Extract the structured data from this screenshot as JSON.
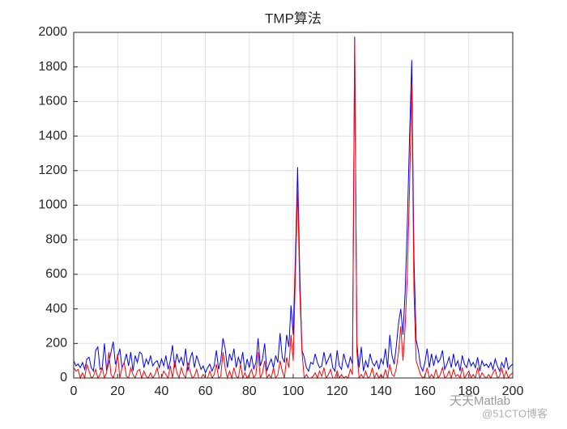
{
  "chart_data": {
    "type": "line",
    "title": "TMP算法",
    "x": [
      0,
      1,
      2,
      3,
      4,
      5,
      6,
      7,
      8,
      9,
      10,
      11,
      12,
      13,
      14,
      15,
      16,
      17,
      18,
      19,
      20,
      21,
      22,
      23,
      24,
      25,
      26,
      27,
      28,
      29,
      30,
      31,
      32,
      33,
      34,
      35,
      36,
      37,
      38,
      39,
      40,
      41,
      42,
      43,
      44,
      45,
      46,
      47,
      48,
      49,
      50,
      51,
      52,
      53,
      54,
      55,
      56,
      57,
      58,
      59,
      60,
      61,
      62,
      63,
      64,
      65,
      66,
      67,
      68,
      69,
      70,
      71,
      72,
      73,
      74,
      75,
      76,
      77,
      78,
      79,
      80,
      81,
      82,
      83,
      84,
      85,
      86,
      87,
      88,
      89,
      90,
      91,
      92,
      93,
      94,
      95,
      96,
      97,
      98,
      99,
      100,
      101,
      102,
      103,
      104,
      105,
      106,
      107,
      108,
      109,
      110,
      111,
      112,
      113,
      114,
      115,
      116,
      117,
      118,
      119,
      120,
      121,
      122,
      123,
      124,
      125,
      126,
      127,
      128,
      129,
      130,
      131,
      132,
      133,
      134,
      135,
      136,
      137,
      138,
      139,
      140,
      141,
      142,
      143,
      144,
      145,
      146,
      147,
      148,
      149,
      150,
      151,
      152,
      153,
      154,
      155,
      156,
      157,
      158,
      159,
      160,
      161,
      162,
      163,
      164,
      165,
      166,
      167,
      168,
      169,
      170,
      171,
      172,
      173,
      174,
      175,
      176,
      177,
      178,
      179,
      180,
      181,
      182,
      183,
      184,
      185,
      186,
      187,
      188,
      189,
      190,
      191,
      192,
      193,
      194,
      195,
      196,
      197,
      198,
      199,
      200
    ],
    "series": [
      {
        "color": "#0000ff",
        "values": [
          100,
          70,
          80,
          60,
          90,
          50,
          110,
          120,
          60,
          40,
          160,
          180,
          50,
          60,
          200,
          40,
          90,
          150,
          210,
          80,
          120,
          170,
          60,
          90,
          140,
          70,
          150,
          40,
          130,
          90,
          150,
          140,
          60,
          110,
          80,
          130,
          70,
          90,
          100,
          60,
          110,
          70,
          130,
          50,
          100,
          190,
          60,
          140,
          90,
          120,
          70,
          170,
          40,
          110,
          150,
          60,
          130,
          90,
          50,
          70,
          30,
          60,
          80,
          40,
          70,
          160,
          50,
          100,
          230,
          170,
          60,
          140,
          100,
          170,
          60,
          120,
          80,
          150,
          40,
          110,
          60,
          130,
          50,
          90,
          230,
          70,
          110,
          200,
          40,
          80,
          110,
          60,
          130,
          90,
          260,
          120,
          90,
          250,
          180,
          420,
          250,
          700,
          1220,
          600,
          160,
          120,
          60,
          40,
          90,
          80,
          140,
          90,
          60,
          70,
          150,
          80,
          110,
          140,
          60,
          40,
          160,
          70,
          50,
          140,
          90,
          60,
          120,
          80,
          1975,
          200,
          60,
          180,
          40,
          100,
          60,
          140,
          90,
          70,
          100,
          50,
          110,
          80,
          170,
          60,
          250,
          130,
          80,
          190,
          320,
          400,
          250,
          500,
          900,
          1400,
          1840,
          700,
          220,
          160,
          70,
          40,
          90,
          170,
          60,
          140,
          70,
          130,
          90,
          110,
          160,
          50,
          80,
          120,
          60,
          140,
          70,
          100,
          40,
          130,
          80,
          60,
          110,
          70,
          90,
          60,
          120,
          40,
          100,
          70,
          80,
          60,
          90,
          50,
          110,
          70,
          40,
          90,
          60,
          120,
          50,
          70,
          80
        ]
      },
      {
        "color": "#ff0000",
        "values": [
          60,
          40,
          50,
          0,
          30,
          0,
          80,
          40,
          0,
          10,
          50,
          0,
          20,
          60,
          0,
          30,
          150,
          20,
          0,
          40,
          140,
          0,
          60,
          90,
          10,
          0,
          60,
          20,
          0,
          40,
          50,
          0,
          40,
          10,
          0,
          30,
          0,
          20,
          60,
          0,
          0,
          40,
          20,
          0,
          70,
          0,
          100,
          30,
          0,
          60,
          20,
          0,
          90,
          40,
          0,
          10,
          50,
          0,
          0,
          20,
          0,
          0,
          40,
          0,
          20,
          80,
          0,
          10,
          150,
          60,
          0,
          40,
          0,
          60,
          10,
          0,
          80,
          0,
          30,
          0,
          20,
          50,
          0,
          20,
          150,
          0,
          30,
          100,
          0,
          20,
          0,
          60,
          0,
          20,
          100,
          40,
          0,
          120,
          60,
          250,
          100,
          600,
          1100,
          500,
          150,
          0,
          20,
          0,
          0,
          10,
          30,
          0,
          40,
          10,
          60,
          0,
          20,
          50,
          0,
          0,
          40,
          0,
          20,
          0,
          10,
          0,
          50,
          20,
          1950,
          150,
          0,
          20,
          0,
          40,
          0,
          10,
          60,
          0,
          30,
          0,
          20,
          0,
          50,
          0,
          80,
          20,
          10,
          60,
          150,
          300,
          100,
          300,
          600,
          1100,
          1700,
          500,
          100,
          60,
          20,
          0,
          10,
          60,
          0,
          20,
          0,
          50,
          0,
          20,
          60,
          0,
          10,
          40,
          0,
          50,
          10,
          20,
          0,
          60,
          0,
          20,
          40,
          0,
          20,
          0,
          60,
          0,
          30,
          10,
          0,
          20,
          0,
          30,
          50,
          0,
          10,
          60,
          0,
          40,
          0,
          20,
          30
        ]
      }
    ],
    "xlim": [
      0,
      200
    ],
    "xticks": [
      0,
      20,
      40,
      60,
      80,
      100,
      120,
      140,
      160,
      180,
      200
    ],
    "ylim": [
      0,
      2000
    ],
    "yticks": [
      0,
      200,
      400,
      600,
      800,
      1000,
      1200,
      1400,
      1600,
      1800,
      2000
    ],
    "grid": true,
    "watermark": [
      "天天Matlab",
      "@51CTO博客"
    ]
  }
}
